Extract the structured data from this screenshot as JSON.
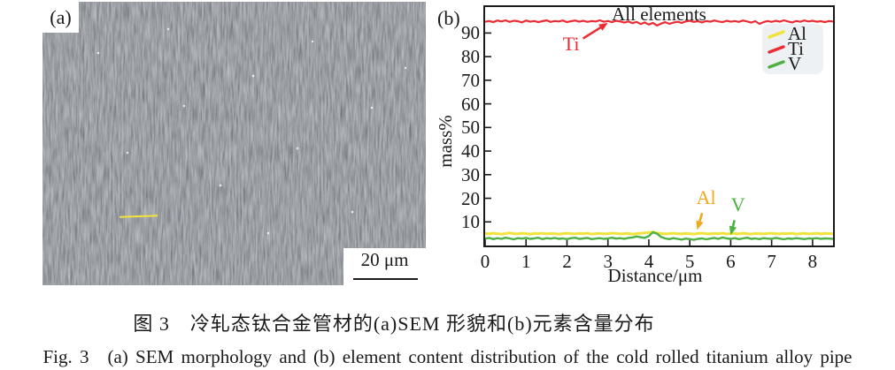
{
  "figure": {
    "panel_a": {
      "label": "(a)",
      "scale_bar_label": "20 μm"
    },
    "panel_b": {
      "label": "(b)"
    },
    "caption_zh": "图 3　冷轧态钛合金管材的(a)SEM 形貌和(b)元素含量分布",
    "caption_en": "Fig. 3　(a) SEM morphology and (b) element content distribution of the cold rolled titanium alloy pipe"
  },
  "chart_data": {
    "type": "line",
    "title": "All elements",
    "xlabel": "Distance/μm",
    "ylabel": "mass%",
    "xlim": [
      0,
      8.5
    ],
    "ylim": [
      0,
      101
    ],
    "x_start": 0,
    "x_step": 0.1,
    "x_ticks": [
      0,
      1,
      2,
      3,
      4,
      5,
      6,
      7,
      8
    ],
    "y_ticks": [
      10,
      20,
      30,
      40,
      50,
      60,
      70,
      80,
      90
    ],
    "grid": false,
    "legend_position": "top-right",
    "series": [
      {
        "name": "Al",
        "color": "#f2e33c",
        "width": 3,
        "values": [
          5.1,
          4.9,
          5.2,
          5.0,
          4.8,
          5.1,
          5.3,
          5.0,
          4.9,
          5.2,
          5.0,
          4.8,
          5.1,
          5.0,
          5.2,
          4.9,
          5.1,
          5.0,
          4.8,
          5.0,
          5.2,
          5.0,
          4.9,
          5.1,
          5.0,
          5.2,
          4.8,
          5.0,
          5.1,
          4.9,
          5.0,
          5.2,
          5.1,
          4.9,
          5.0,
          5.1,
          4.8,
          5.0,
          5.2,
          5.3,
          5.5,
          5.7,
          5.3,
          5.1,
          4.9,
          5.0,
          5.2,
          5.0,
          4.9,
          5.1,
          5.0,
          4.8,
          5.1,
          5.2,
          5.0,
          4.9,
          5.1,
          5.0,
          5.2,
          4.9,
          5.0,
          5.1,
          4.9,
          5.2,
          5.0,
          4.8,
          5.1,
          5.0,
          4.9,
          5.1,
          5.2,
          5.0,
          4.9,
          5.1,
          5.0,
          5.2,
          4.8,
          5.0,
          5.1,
          4.9,
          5.0,
          5.2,
          4.9,
          5.1,
          5.0,
          5.0
        ]
      },
      {
        "name": "Ti",
        "color": "#ed2b33",
        "width": 2.2,
        "values": [
          94.8,
          95.1,
          94.6,
          95.3,
          94.9,
          95.4,
          94.7,
          95.2,
          95.0,
          94.5,
          95.3,
          94.8,
          95.1,
          94.6,
          95.0,
          95.4,
          94.7,
          95.1,
          94.9,
          95.3,
          94.6,
          95.0,
          95.3,
          94.8,
          95.2,
          94.7,
          95.1,
          94.9,
          95.4,
          94.8,
          95.1,
          94.6,
          95.2,
          94.9,
          94.4,
          94.9,
          94.2,
          94.7,
          93.8,
          94.5,
          93.6,
          94.3,
          93.2,
          94.0,
          94.6,
          93.9,
          94.4,
          94.8,
          94.3,
          94.9,
          95.2,
          94.7,
          95.0,
          94.5,
          95.1,
          94.8,
          95.3,
          94.9,
          94.6,
          95.2,
          94.8,
          95.1,
          94.7,
          95.3,
          94.9,
          94.4,
          95.0,
          93.9,
          94.6,
          95.1,
          94.7,
          95.2,
          94.8,
          95.4,
          94.9,
          94.5,
          95.1,
          94.8,
          95.3,
          94.9,
          95.2,
          94.8,
          95.0,
          94.6,
          95.1,
          94.9
        ]
      },
      {
        "name": "V",
        "color": "#4eb043",
        "width": 2.4,
        "values": [
          2.9,
          3.2,
          2.7,
          3.1,
          2.8,
          3.3,
          3.0,
          2.6,
          3.1,
          2.9,
          3.2,
          2.8,
          3.0,
          3.3,
          2.7,
          3.1,
          2.9,
          3.2,
          2.8,
          3.0,
          2.7,
          3.1,
          3.3,
          2.8,
          3.0,
          3.2,
          2.7,
          2.9,
          3.1,
          2.8,
          3.0,
          3.3,
          2.9,
          3.1,
          2.8,
          3.2,
          3.4,
          3.8,
          3.5,
          3.2,
          4.0,
          5.6,
          5.0,
          3.6,
          3.0,
          2.7,
          3.1,
          2.8,
          2.5,
          2.9,
          2.7,
          2.4,
          2.8,
          3.0,
          2.6,
          2.9,
          3.2,
          2.8,
          3.4,
          3.0,
          2.8,
          3.1,
          2.7,
          3.0,
          3.3,
          2.8,
          3.0,
          2.7,
          3.1,
          2.9,
          2.8,
          3.2,
          2.9,
          2.6,
          3.0,
          2.8,
          3.1,
          2.9,
          2.7,
          3.0,
          2.9,
          3.1,
          2.8,
          3.0,
          2.9,
          2.8
        ]
      }
    ],
    "annotations": [
      {
        "text": "Ti",
        "color": "#ed2b33",
        "label": [
          2.1,
          84.5
        ],
        "tip": [
          3.0,
          94.3
        ]
      },
      {
        "text": "Al",
        "color": "#f2a81d",
        "label": [
          5.4,
          19.5
        ],
        "tip": [
          5.18,
          6.6
        ]
      },
      {
        "text": "V",
        "color": "#4eb043",
        "label": [
          6.18,
          16.5
        ],
        "tip": [
          6.0,
          4.4
        ]
      }
    ]
  }
}
